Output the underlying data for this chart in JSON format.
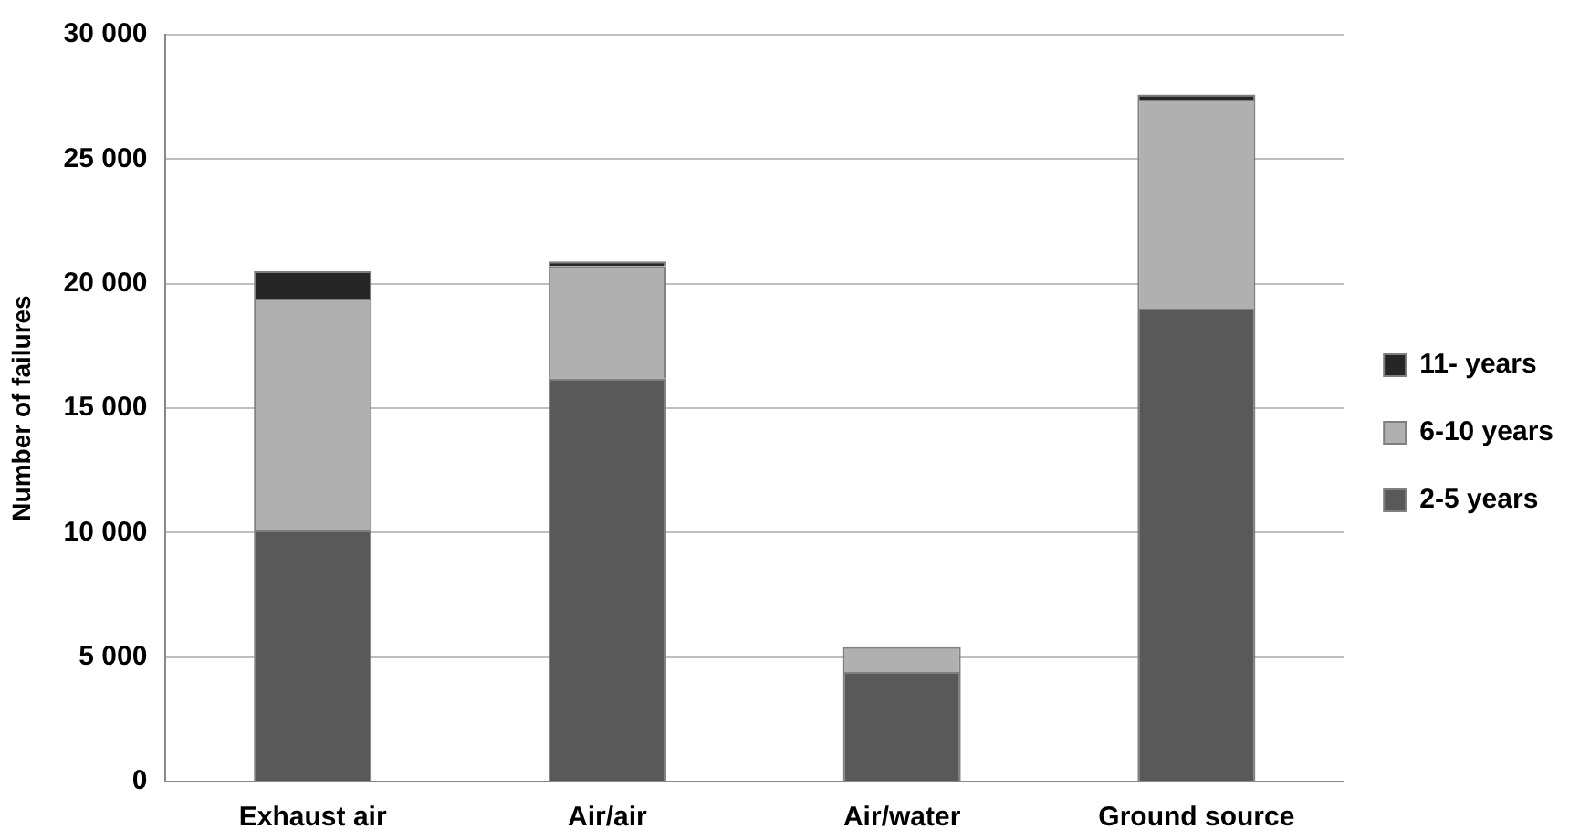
{
  "chart_data": {
    "type": "bar",
    "ylabel": "Number of failures",
    "categories": [
      "Exhaust air",
      "Air/air",
      "Air/water",
      "Ground source"
    ],
    "stacked": true,
    "series": [
      {
        "name": "2-5 years",
        "color": "#595959",
        "values": [
          10100,
          16200,
          4400,
          19000
        ]
      },
      {
        "name": "6-10 years",
        "color": "#b0b0b0",
        "values": [
          9300,
          4500,
          1000,
          8400
        ]
      },
      {
        "name": "11- years",
        "color": "#262626",
        "values": [
          1100,
          200,
          0,
          200
        ]
      }
    ],
    "ylim": [
      0,
      30000
    ],
    "yticks": [
      {
        "value": 0,
        "label": "0"
      },
      {
        "value": 5000,
        "label": "5 000"
      },
      {
        "value": 10000,
        "label": "10 000"
      },
      {
        "value": 15000,
        "label": "15 000"
      },
      {
        "value": 20000,
        "label": "20 000"
      },
      {
        "value": 25000,
        "label": "25 000"
      },
      {
        "value": 30000,
        "label": "30 000"
      }
    ],
    "grid": "y",
    "legend": "right"
  }
}
